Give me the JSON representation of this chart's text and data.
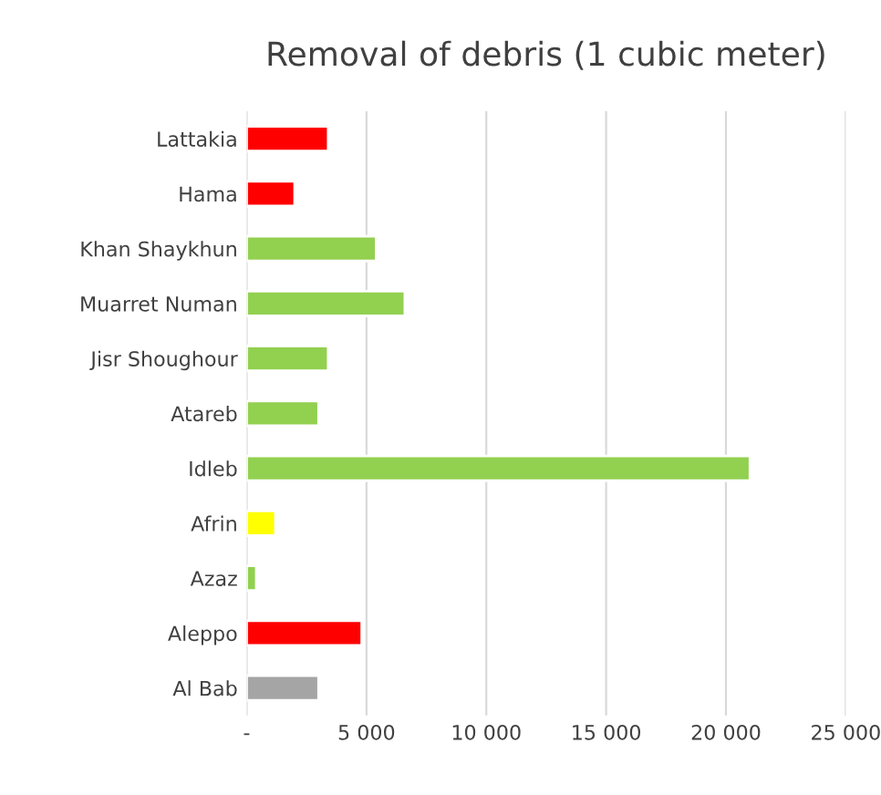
{
  "chart_data": {
    "type": "bar",
    "orientation": "horizontal",
    "title": "Removal of debris (1 cubic meter)",
    "categories": [
      "Lattakia",
      "Hama",
      "Khan Shaykhun",
      "Muarret Numan",
      "Jisr Shoughour",
      "Atareb",
      "Idleb",
      "Afrin",
      "Azaz",
      "Aleppo",
      "Al Bab"
    ],
    "values": [
      3400,
      2000,
      5400,
      6600,
      3400,
      3000,
      21000,
      1200,
      400,
      4800,
      3000
    ],
    "colors": [
      "#ff0000",
      "#ff0000",
      "#92d050",
      "#92d050",
      "#92d050",
      "#92d050",
      "#92d050",
      "#ffff00",
      "#92d050",
      "#ff0000",
      "#a5a5a5"
    ],
    "xlim": [
      0,
      25000
    ],
    "xticks": [
      {
        "value": 0,
        "label": "-"
      },
      {
        "value": 5000,
        "label": "5 000"
      },
      {
        "value": 10000,
        "label": "10 000"
      },
      {
        "value": 15000,
        "label": "15 000"
      },
      {
        "value": 20000,
        "label": "20 000"
      },
      {
        "value": 25000,
        "label": "25 000"
      }
    ],
    "grid": "x",
    "legend": false
  }
}
